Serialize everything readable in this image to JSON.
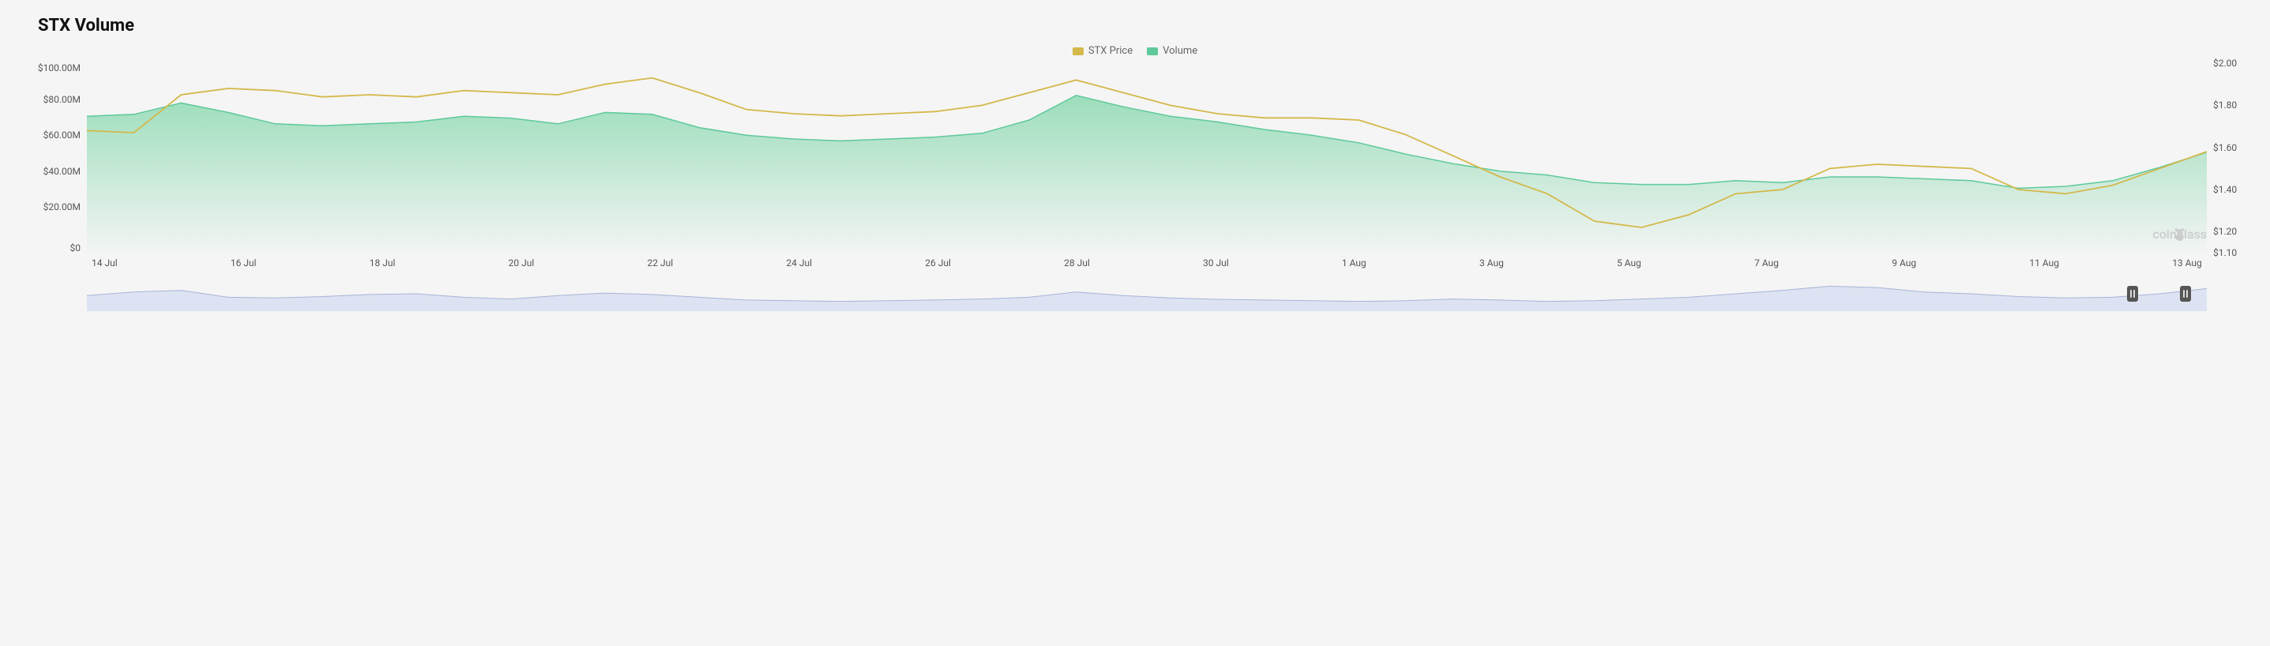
{
  "title": "STX Volume",
  "legend": {
    "price_label": "STX Price",
    "volume_label": "Volume",
    "price_color": "#d4b84a",
    "volume_color": "#5ec99a"
  },
  "watermark": "coinglass",
  "chart": {
    "background_color": "#f5f5f5",
    "left_axis": {
      "min": 0,
      "max": 100,
      "labels": [
        "$100.00M",
        "$80.00M",
        "$60.00M",
        "$40.00M",
        "$20.00M",
        "$0"
      ]
    },
    "right_axis": {
      "min": 1.1,
      "max": 2.0,
      "ticks": [
        2.0,
        1.8,
        1.6,
        1.4,
        1.2,
        1.1
      ],
      "labels": [
        "$2.00",
        "$1.80",
        "$1.60",
        "$1.40",
        "$1.20",
        "$1.10"
      ]
    },
    "x_labels": [
      "14 Jul",
      "16 Jul",
      "18 Jul",
      "20 Jul",
      "22 Jul",
      "24 Jul",
      "26 Jul",
      "28 Jul",
      "30 Jul",
      "1 Aug",
      "3 Aug",
      "5 Aug",
      "7 Aug",
      "9 Aug",
      "11 Aug",
      "13 Aug"
    ],
    "volume_series": {
      "color_top": "#7ed6a8",
      "color_bottom": "rgba(126,214,168,0.05)",
      "stroke": "#5ec99a",
      "values_m": [
        72,
        73,
        79,
        74,
        68,
        67,
        68,
        69,
        72,
        71,
        68,
        74,
        73,
        66,
        62,
        60,
        59,
        60,
        61,
        63,
        70,
        83,
        77,
        72,
        69,
        65,
        62,
        58,
        52,
        47,
        43,
        41,
        37,
        36,
        36,
        38,
        37,
        40,
        40,
        39,
        38,
        34,
        35,
        38,
        45,
        53
      ]
    },
    "price_series": {
      "stroke": "#d4b84a",
      "stroke_width": 1.8,
      "values": [
        1.68,
        1.67,
        1.85,
        1.88,
        1.87,
        1.84,
        1.85,
        1.84,
        1.87,
        1.86,
        1.85,
        1.9,
        1.93,
        1.86,
        1.78,
        1.76,
        1.75,
        1.76,
        1.77,
        1.8,
        1.86,
        1.92,
        1.86,
        1.8,
        1.76,
        1.74,
        1.74,
        1.73,
        1.66,
        1.56,
        1.46,
        1.38,
        1.25,
        1.22,
        1.28,
        1.38,
        1.4,
        1.5,
        1.52,
        1.51,
        1.5,
        1.4,
        1.38,
        1.42,
        1.5,
        1.58
      ]
    },
    "mini_series": {
      "stroke": "#a8b4d8",
      "fill": "#dde3f2",
      "values": [
        0.45,
        0.55,
        0.6,
        0.4,
        0.38,
        0.42,
        0.48,
        0.5,
        0.4,
        0.35,
        0.45,
        0.52,
        0.48,
        0.4,
        0.32,
        0.3,
        0.28,
        0.3,
        0.32,
        0.35,
        0.4,
        0.55,
        0.45,
        0.38,
        0.34,
        0.32,
        0.3,
        0.28,
        0.3,
        0.35,
        0.32,
        0.28,
        0.3,
        0.35,
        0.4,
        0.5,
        0.6,
        0.72,
        0.68,
        0.55,
        0.5,
        0.42,
        0.38,
        0.4,
        0.5,
        0.65
      ],
      "handle_left_pct": 96.5,
      "handle_right_pct": 99
    }
  }
}
